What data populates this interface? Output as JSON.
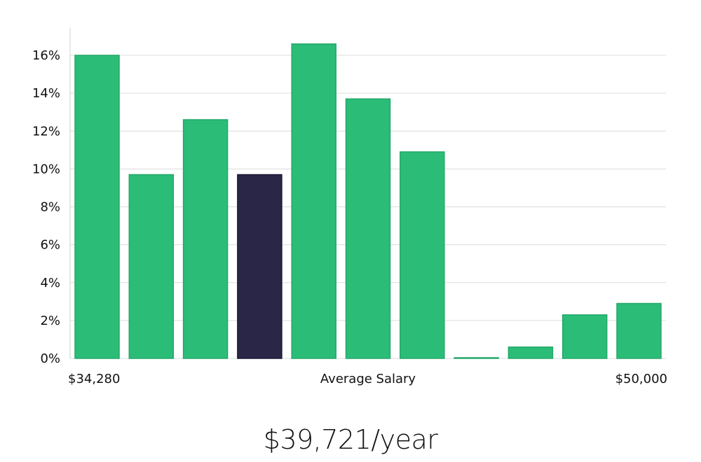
{
  "chart_data": {
    "type": "bar",
    "bin_count": 11,
    "values": [
      16.0,
      9.7,
      12.6,
      9.7,
      16.6,
      13.7,
      10.9,
      0.0,
      0.6,
      2.3,
      2.9
    ],
    "highlight_index": 3,
    "ylim": [
      0,
      17.5
    ],
    "yticks": [
      0,
      2,
      4,
      6,
      8,
      10,
      12,
      14,
      16
    ],
    "ytick_suffix": "%",
    "x_min_label": "$34,280",
    "xlabel": "Average Salary",
    "x_max_label": "$50,000",
    "grid": true,
    "colors": {
      "bar": "#2bbd78",
      "bar_edge": "#24a869",
      "highlight": "#2a2647",
      "grid": "#dcdcdc",
      "axis": "#d0d0d0"
    }
  },
  "headline": "$39,721/year"
}
